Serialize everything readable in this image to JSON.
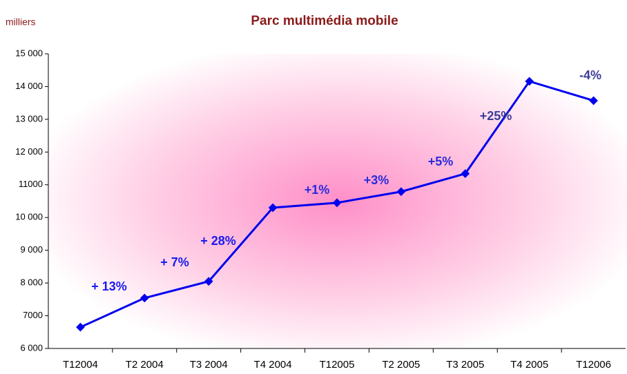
{
  "chart_data": {
    "type": "line",
    "title": "Parc multimédia mobile",
    "y_axis_label": "milliers",
    "categories": [
      "T12004",
      "T2 2004",
      "T3 2004",
      "T4 2004",
      "T12005",
      "T2 2005",
      "T3 2005",
      "T4 2005",
      "T12006"
    ],
    "series": [
      {
        "name": "Parc multimédia mobile",
        "color": "#0000ee",
        "values": [
          6650,
          7540,
          8050,
          10300,
          10450,
          10790,
          11340,
          14160,
          13570
        ]
      }
    ],
    "ylim": [
      6000,
      15000
    ],
    "yticks": [
      {
        "value": 6000,
        "label": "6 000"
      },
      {
        "value": 7000,
        "label": "7000"
      },
      {
        "value": 8000,
        "label": "8 000"
      },
      {
        "value": 9000,
        "label": "9 000"
      },
      {
        "value": 10000,
        "label": "10 000"
      },
      {
        "value": 11000,
        "label": "11000"
      },
      {
        "value": 12000,
        "label": "12 000"
      },
      {
        "value": 13000,
        "label": "13 000"
      },
      {
        "value": 14000,
        "label": "14 000"
      },
      {
        "value": 15000,
        "label": "15 000"
      }
    ],
    "annotations": [
      {
        "text": "+ 13%",
        "color": "#1a1aee"
      },
      {
        "text": "+ 7%",
        "color": "#1a1aee"
      },
      {
        "text": "+ 28%",
        "color": "#1a1aee"
      },
      {
        "text": "+1%",
        "color": "#2a2add"
      },
      {
        "text": "+3%",
        "color": "#2a2add"
      },
      {
        "text": "+5%",
        "color": "#2a2add"
      },
      {
        "text": "+25%",
        "color": "#3c3c9c"
      },
      {
        "text": "-4%",
        "color": "#3c3c9c"
      }
    ]
  }
}
